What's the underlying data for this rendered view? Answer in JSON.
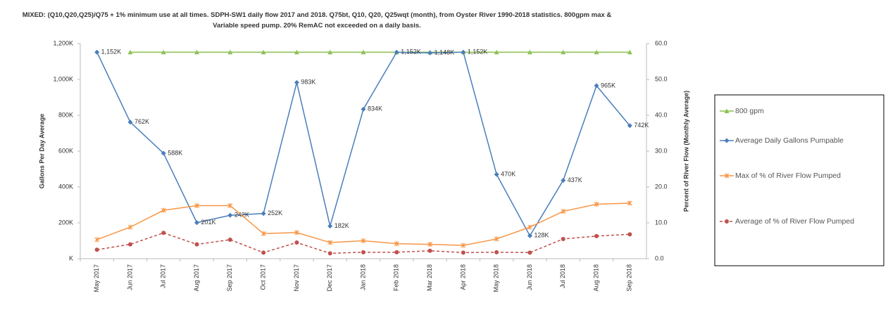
{
  "chart_data": {
    "type": "line",
    "title": "MIXED: (Q10,Q20,Q25)/Q75 + 1% minimum use at all times. SDPH-SW1 daily flow 2017 and 2018. Q75bt, Q10, Q20, Q25wqt (month), from Oyster River 1990-2018 statistics. 800gpm max & Variable speed pump. 20% RemAC not exceeded on a daily basis.",
    "y_label": "Gallons Per Day Average",
    "y2_label": "Percent of River Flow (Monthly Average)",
    "categories": [
      "May 2017",
      "Jun 2017",
      "Jul 2017",
      "Aug 2017",
      "Sep 2017",
      "Oct 2017",
      "Nov 2017",
      "Dec 2017",
      "Jan 2018",
      "Feb 2018",
      "Mar 2018",
      "Apr 2018",
      "May 2018",
      "Jun 2018",
      "Jul 2018",
      "Aug 2018",
      "Sep 2018"
    ],
    "ylim": [
      0,
      1200000
    ],
    "yticks": [
      {
        "value": 0,
        "label": "K"
      },
      {
        "value": 200000,
        "label": "200K"
      },
      {
        "value": 400000,
        "label": "400K"
      },
      {
        "value": 600000,
        "label": "600K"
      },
      {
        "value": 800000,
        "label": "800K"
      },
      {
        "value": 1000000,
        "label": "1,000K"
      },
      {
        "value": 1200000,
        "label": "1,200K"
      }
    ],
    "y2lim": [
      0,
      60
    ],
    "y2ticks": [
      {
        "value": 0,
        "label": "0.0"
      },
      {
        "value": 10,
        "label": "10.0"
      },
      {
        "value": 20,
        "label": "20.0"
      },
      {
        "value": 30,
        "label": "30.0"
      },
      {
        "value": 40,
        "label": "40.0"
      },
      {
        "value": 50,
        "label": "50.0"
      },
      {
        "value": 60,
        "label": "60.0"
      }
    ],
    "legend": "right",
    "series": [
      {
        "name": "800 gpm",
        "color": "#8cc152",
        "marker": "triangle",
        "axis": "y",
        "values": [
          null,
          1152000,
          1152000,
          1152000,
          1152000,
          1152000,
          1152000,
          1152000,
          1152000,
          1152000,
          1152000,
          1152000,
          1152000,
          1152000,
          1152000,
          1152000,
          1152000
        ]
      },
      {
        "name": "Average Daily Gallons Pumpable",
        "color": "#4a7ebb",
        "marker": "diamond",
        "axis": "y",
        "values": [
          1152000,
          762000,
          588000,
          201000,
          242000,
          252000,
          983000,
          182000,
          834000,
          1152000,
          1148000,
          1152000,
          470000,
          128000,
          437000,
          965000,
          742000
        ],
        "value_labels": [
          "1,152K",
          "762K",
          "588K",
          "201K",
          "242K",
          "252K",
          "983K",
          "182K",
          "834K",
          "1,152K",
          "1,148K",
          "1,152K",
          "470K",
          "128K",
          "437K",
          "965K",
          "742K"
        ]
      },
      {
        "name": "Max of % of River Flow Pumped",
        "color": "#f79646",
        "marker": "cross",
        "axis": "y2",
        "values": [
          5.3,
          8.8,
          13.5,
          14.8,
          14.8,
          7.0,
          7.3,
          4.5,
          5.0,
          4.2,
          4.0,
          3.7,
          5.5,
          8.8,
          13.2,
          15.2,
          15.5
        ]
      },
      {
        "name": "Average of % of River Flow Pumped",
        "color": "#c0504d",
        "marker": "circle",
        "axis": "y2",
        "dashed": true,
        "values": [
          2.5,
          4.0,
          7.2,
          4.0,
          5.3,
          1.7,
          4.5,
          1.5,
          1.8,
          1.8,
          2.2,
          1.7,
          1.8,
          1.7,
          5.5,
          6.3,
          6.8
        ]
      }
    ]
  }
}
